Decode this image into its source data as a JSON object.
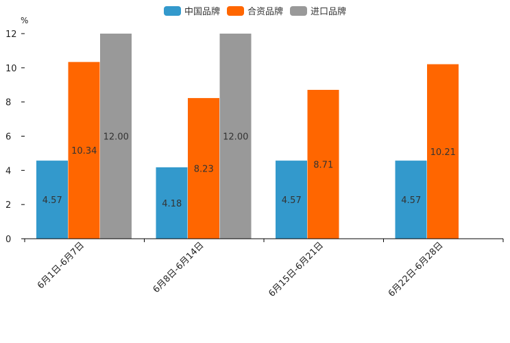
{
  "chart_data": {
    "type": "bar",
    "title": "",
    "xlabel": "",
    "ylabel": "%",
    "ylim": [
      0,
      12
    ],
    "yticks": [
      0,
      2,
      4,
      6,
      8,
      10,
      12
    ],
    "grid": false,
    "legend_position": "top-center",
    "categories": [
      "6月1日-6月7日",
      "6月8日-6月14日",
      "6月15日-6月21日",
      "6月22日-6月28日"
    ],
    "series": [
      {
        "name": "中国品牌",
        "color": "#3399cc",
        "values": [
          4.57,
          4.18,
          4.57,
          4.57
        ],
        "labels": [
          "4.57",
          "4.18",
          "4.57",
          "4.57"
        ]
      },
      {
        "name": "合资品牌",
        "color": "#ff6600",
        "values": [
          10.34,
          8.23,
          8.71,
          10.21
        ],
        "labels": [
          "10.34",
          "8.23",
          "8.71",
          "10.21"
        ]
      },
      {
        "name": "进口品牌",
        "color": "#999999",
        "values": [
          12.0,
          12.0,
          null,
          null
        ],
        "labels": [
          "12.00",
          "12.00",
          null,
          null
        ]
      }
    ]
  }
}
